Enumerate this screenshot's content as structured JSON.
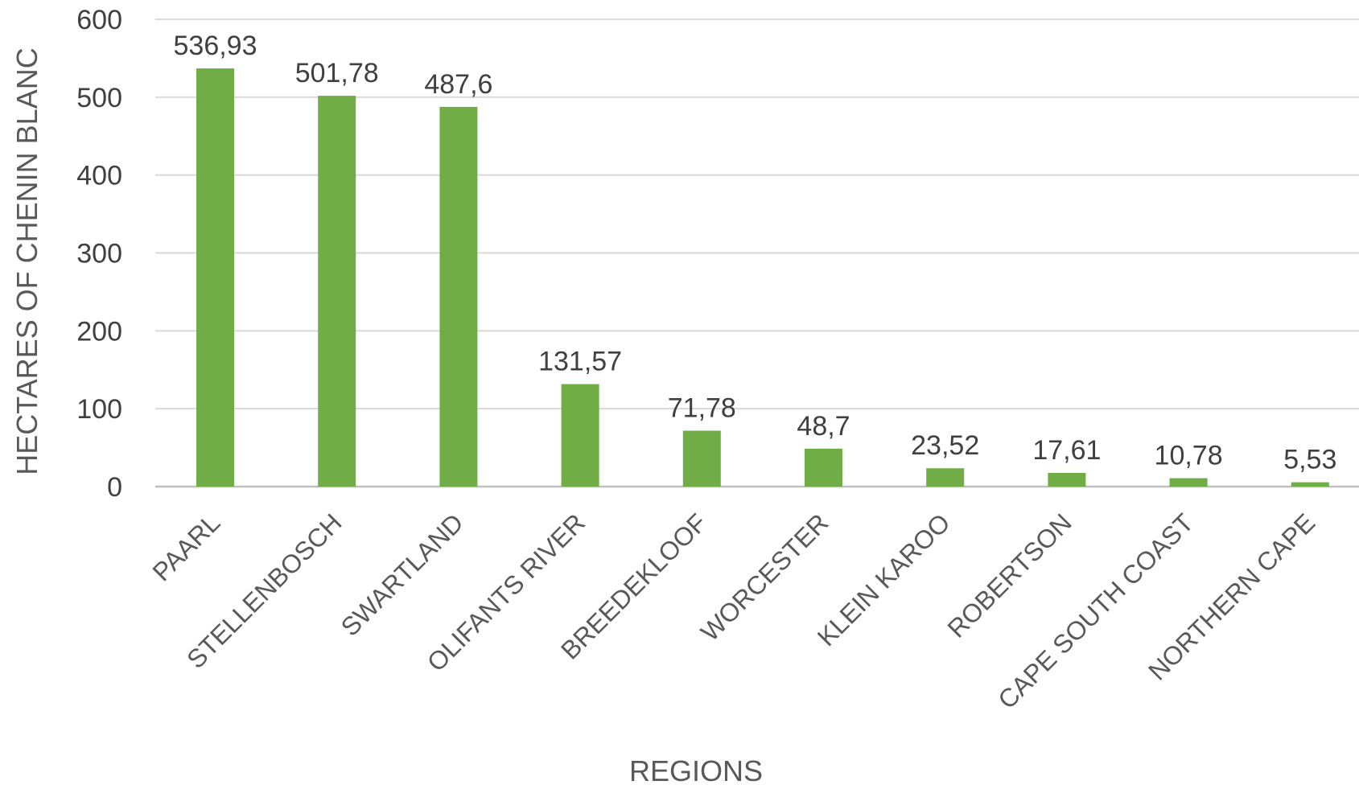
{
  "chart_data": {
    "type": "bar",
    "title": "",
    "xlabel": "REGIONS",
    "ylabel": "HECTARES OF CHENIN BLANC",
    "ylim": [
      0,
      600
    ],
    "yticks": [
      0,
      100,
      200,
      300,
      400,
      500,
      600
    ],
    "grid": true,
    "legend": "none",
    "bar_color": "#70AD47",
    "categories": [
      "PAARL",
      "STELLENBOSCH",
      "SWARTLAND",
      "OLIFANTS RIVER",
      "BREEDEKLOOF",
      "WORCESTER",
      "KLEIN KAROO",
      "ROBERTSON",
      "CAPE SOUTH COAST",
      "NORTHERN CAPE"
    ],
    "values": [
      536.93,
      501.78,
      487.6,
      131.57,
      71.78,
      48.7,
      23.52,
      17.61,
      10.78,
      5.53
    ],
    "value_labels": [
      "536,93",
      "501,78",
      "487,6",
      "131,57",
      "71,78",
      "48,7",
      "23,52",
      "17,61",
      "10,78",
      "5,53"
    ]
  }
}
